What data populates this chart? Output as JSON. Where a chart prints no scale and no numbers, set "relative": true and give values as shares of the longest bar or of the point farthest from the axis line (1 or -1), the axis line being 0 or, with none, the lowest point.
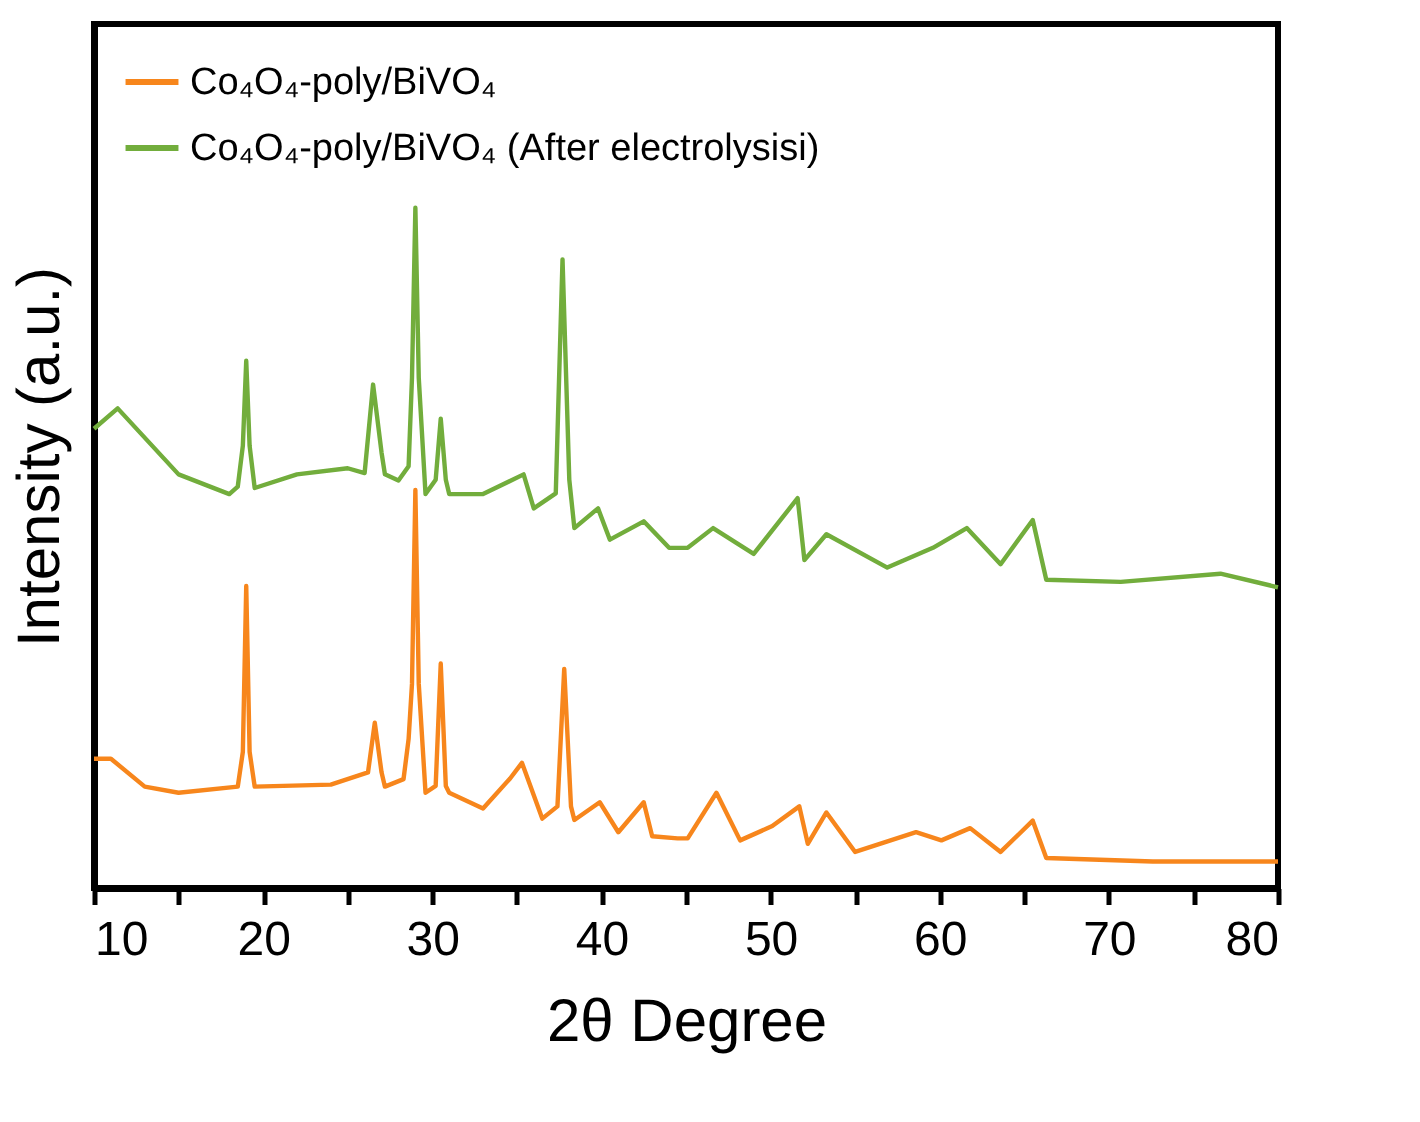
{
  "chart_data": {
    "type": "line",
    "xlabel": "2θ Degree",
    "ylabel": "Intensity (a.u.)",
    "relative": true,
    "legend": "top left",
    "tick_labels": "x",
    "grid": false,
    "xlim": [
      10,
      80
    ],
    "xticks": [
      10,
      {
        "value": 15,
        "label": null
      },
      20,
      {
        "value": 25,
        "label": null
      },
      30,
      {
        "value": 35,
        "label": null
      },
      40,
      {
        "value": 45,
        "label": null
      },
      50,
      {
        "value": 55,
        "label": null
      },
      60,
      {
        "value": 65,
        "label": null
      },
      70,
      {
        "value": 75,
        "label": null
      },
      80
    ],
    "series": [
      {
        "name": "Co₄O₄-poly/BiVO₄",
        "color": "#f7861c",
        "x": [
          10,
          11,
          13,
          15,
          18.5,
          18.8,
          19,
          19.2,
          19.5,
          24,
          26.2,
          26.6,
          27,
          27.2,
          28.3,
          28.6,
          28.8,
          29,
          29.2,
          29.6,
          30.2,
          30.5,
          30.8,
          31,
          33,
          34.6,
          35.3,
          36.5,
          37.4,
          37.8,
          38.2,
          38.4,
          39.9,
          41,
          42.5,
          43,
          44.5,
          45.1,
          46.8,
          48.2,
          50.1,
          51.7,
          52.2,
          53.3,
          55,
          58.6,
          60.1,
          61.8,
          63.6,
          65.5,
          66.3,
          72.6,
          80
        ],
        "values": [
          0.19,
          0.19,
          0.149,
          0.14,
          0.149,
          0.2,
          0.444,
          0.2,
          0.149,
          0.152,
          0.17,
          0.243,
          0.17,
          0.149,
          0.16,
          0.219,
          0.3,
          0.585,
          0.3,
          0.14,
          0.15,
          0.33,
          0.15,
          0.14,
          0.117,
          0.161,
          0.184,
          0.102,
          0.12,
          0.322,
          0.12,
          0.1,
          0.126,
          0.082,
          0.126,
          0.076,
          0.073,
          0.073,
          0.14,
          0.07,
          0.091,
          0.12,
          0.065,
          0.111,
          0.053,
          0.082,
          0.07,
          0.088,
          0.053,
          0.099,
          0.044,
          0.039,
          0.039
        ]
      },
      {
        "name": "Co₄O₄-poly/BiVO₄ (After electrolysisi)",
        "color": "#72ad3c",
        "x": [
          10,
          11.4,
          15,
          18,
          18.5,
          18.8,
          19,
          19.2,
          19.5,
          22,
          25,
          26,
          26.5,
          27,
          27.2,
          28,
          28.6,
          28.8,
          29,
          29.2,
          29.6,
          30.2,
          30.5,
          30.8,
          31,
          33,
          35.4,
          36,
          37.3,
          37.7,
          38.1,
          38.4,
          39.8,
          40.5,
          42.5,
          44,
          45.1,
          46.6,
          49,
          51.6,
          52,
          53.3,
          56.9,
          59.6,
          61.6,
          63.6,
          65.5,
          66.3,
          70.7,
          76.6,
          80
        ],
        "values": [
          0.675,
          0.705,
          0.608,
          0.579,
          0.59,
          0.65,
          0.775,
          0.65,
          0.588,
          0.608,
          0.617,
          0.61,
          0.74,
          0.64,
          0.608,
          0.599,
          0.62,
          0.75,
          1.0,
          0.75,
          0.579,
          0.6,
          0.69,
          0.6,
          0.579,
          0.579,
          0.608,
          0.558,
          0.58,
          0.924,
          0.6,
          0.529,
          0.558,
          0.512,
          0.539,
          0.5,
          0.5,
          0.529,
          0.491,
          0.573,
          0.482,
          0.52,
          0.471,
          0.5,
          0.529,
          0.476,
          0.541,
          0.453,
          0.45,
          0.462,
          0.442
        ]
      }
    ]
  }
}
